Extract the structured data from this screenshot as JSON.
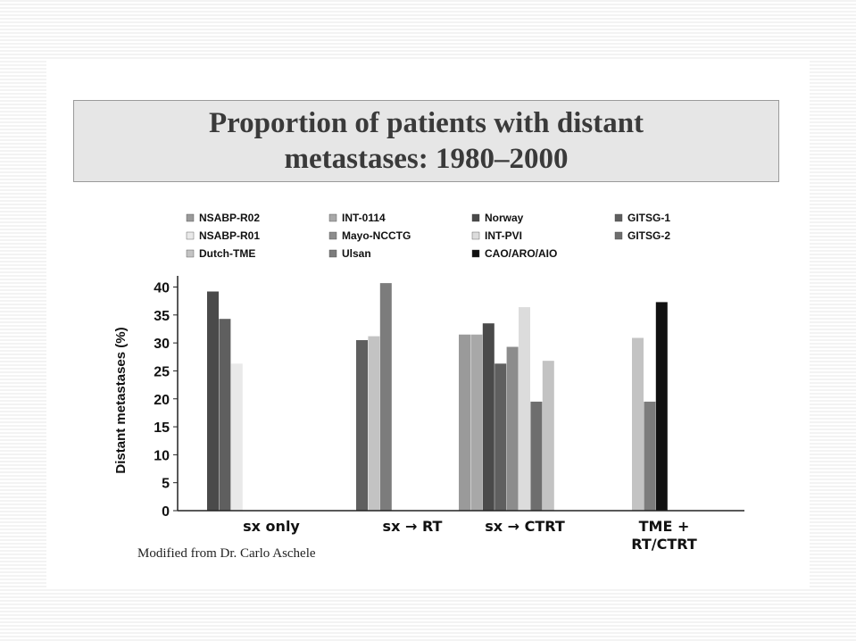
{
  "slide": {
    "title": "Proportion of patients with distant metastases: 1980–2000",
    "source_note": "Modified from Dr. Carlo Aschele"
  },
  "chart_data": {
    "type": "bar",
    "ylabel": "Distant  metastases (%)",
    "xlabel": "",
    "ylim": [
      0,
      40
    ],
    "yticks": [
      0,
      5,
      10,
      15,
      20,
      25,
      30,
      35,
      40
    ],
    "grid": false,
    "legend_position": "top",
    "categories": [
      "sx only",
      "sx → RT",
      "sx → CTRT",
      "TME + RT/CTRT"
    ],
    "category_labels": [
      [
        "sx only"
      ],
      [
        "sx → RT"
      ],
      [
        "sx → CTRT"
      ],
      [
        "TME +",
        "RT/CTRT"
      ]
    ],
    "series": [
      {
        "name": "NSABP-R02",
        "color": "#9a9a9a",
        "values": [
          null,
          null,
          31.5,
          null
        ]
      },
      {
        "name": "INT-0114",
        "color": "#a8a8a8",
        "values": [
          null,
          null,
          31.5,
          null
        ]
      },
      {
        "name": "Norway",
        "color": "#4a4a4a",
        "values": [
          39.2,
          null,
          33.5,
          null
        ]
      },
      {
        "name": "GITSG-1",
        "color": "#5f5f5f",
        "values": [
          34.3,
          30.5,
          26.3,
          null
        ]
      },
      {
        "name": "NSABP-R01",
        "color": "#e9e9e9",
        "values": [
          26.3,
          null,
          null,
          null
        ]
      },
      {
        "name": "Mayo-NCCTG",
        "color": "#8c8c8c",
        "values": [
          null,
          null,
          29.3,
          null
        ]
      },
      {
        "name": "INT-PVI",
        "color": "#dcdcdc",
        "values": [
          null,
          null,
          36.4,
          null
        ]
      },
      {
        "name": "GITSG-2",
        "color": "#6e6e6e",
        "values": [
          null,
          null,
          19.5,
          null
        ]
      },
      {
        "name": "Dutch-TME",
        "color": "#c3c3c3",
        "values": [
          null,
          31.2,
          26.8,
          30.9
        ]
      },
      {
        "name": "Ulsan",
        "color": "#7c7c7c",
        "values": [
          null,
          40.7,
          null,
          19.5
        ]
      },
      {
        "name": "CAO/ARO/AIO",
        "color": "#111111",
        "values": [
          null,
          null,
          null,
          37.3
        ]
      }
    ],
    "legend_order": [
      "NSABP-R02",
      "INT-0114",
      "Norway",
      "GITSG-1",
      "NSABP-R01",
      "Mayo-NCCTG",
      "INT-PVI",
      "GITSG-2",
      "Dutch-TME",
      "Ulsan",
      "CAO/ARO/AIO"
    ]
  }
}
